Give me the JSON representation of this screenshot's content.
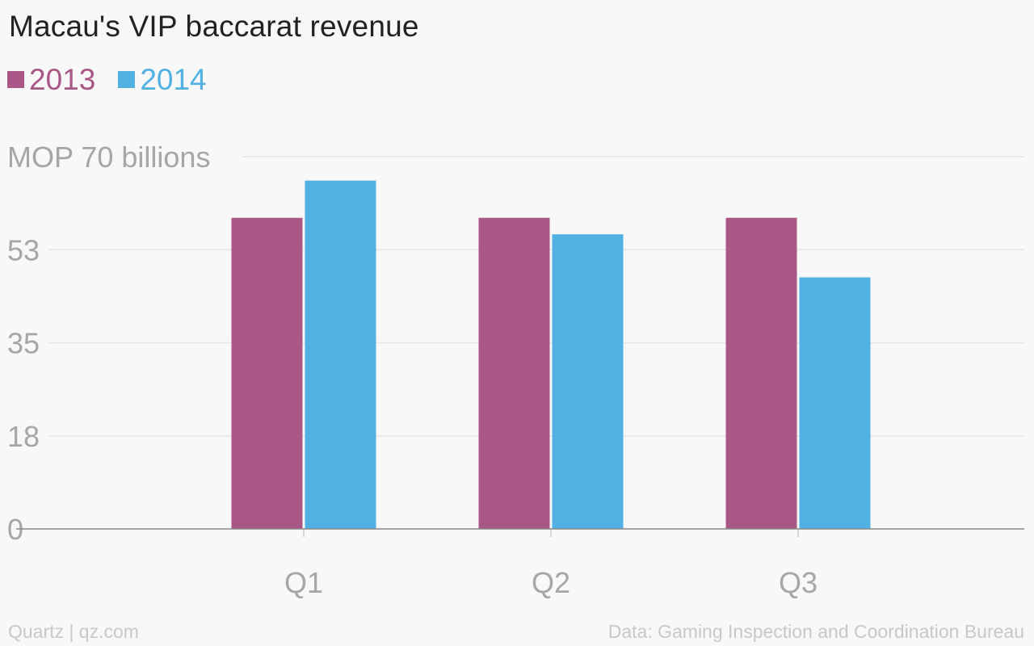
{
  "chart_data": {
    "type": "bar",
    "title": "Macau's VIP baccarat revenue",
    "categories": [
      "Q1",
      "Q2",
      "Q3"
    ],
    "series": [
      {
        "name": "2013",
        "color": "#a85787",
        "values": [
          58.5,
          58.5,
          58.5
        ]
      },
      {
        "name": "2014",
        "color": "#52b1e3",
        "values": [
          65.5,
          55.4,
          47.3
        ]
      }
    ],
    "y_ticks": [
      {
        "value": 0,
        "label": "0"
      },
      {
        "value": 17.5,
        "label": "18"
      },
      {
        "value": 35,
        "label": "35"
      },
      {
        "value": 52.5,
        "label": "53"
      },
      {
        "value": 70,
        "label": "MOP 70 billions"
      }
    ],
    "ylim": [
      0,
      70
    ],
    "xlabel": "",
    "ylabel": "",
    "grid": true,
    "legend_position": "top-left"
  },
  "footer": {
    "source_left": "Quartz | qz.com",
    "source_right": "Data: Gaming Inspection and Coordination Bureau"
  },
  "colors": {
    "background": "#f8f8f8",
    "grid": "#e6e6e6",
    "axis": "#888888",
    "tick_label": "#a6a6a6",
    "footer_text": "#c8c8c8",
    "title_text": "#222222"
  }
}
